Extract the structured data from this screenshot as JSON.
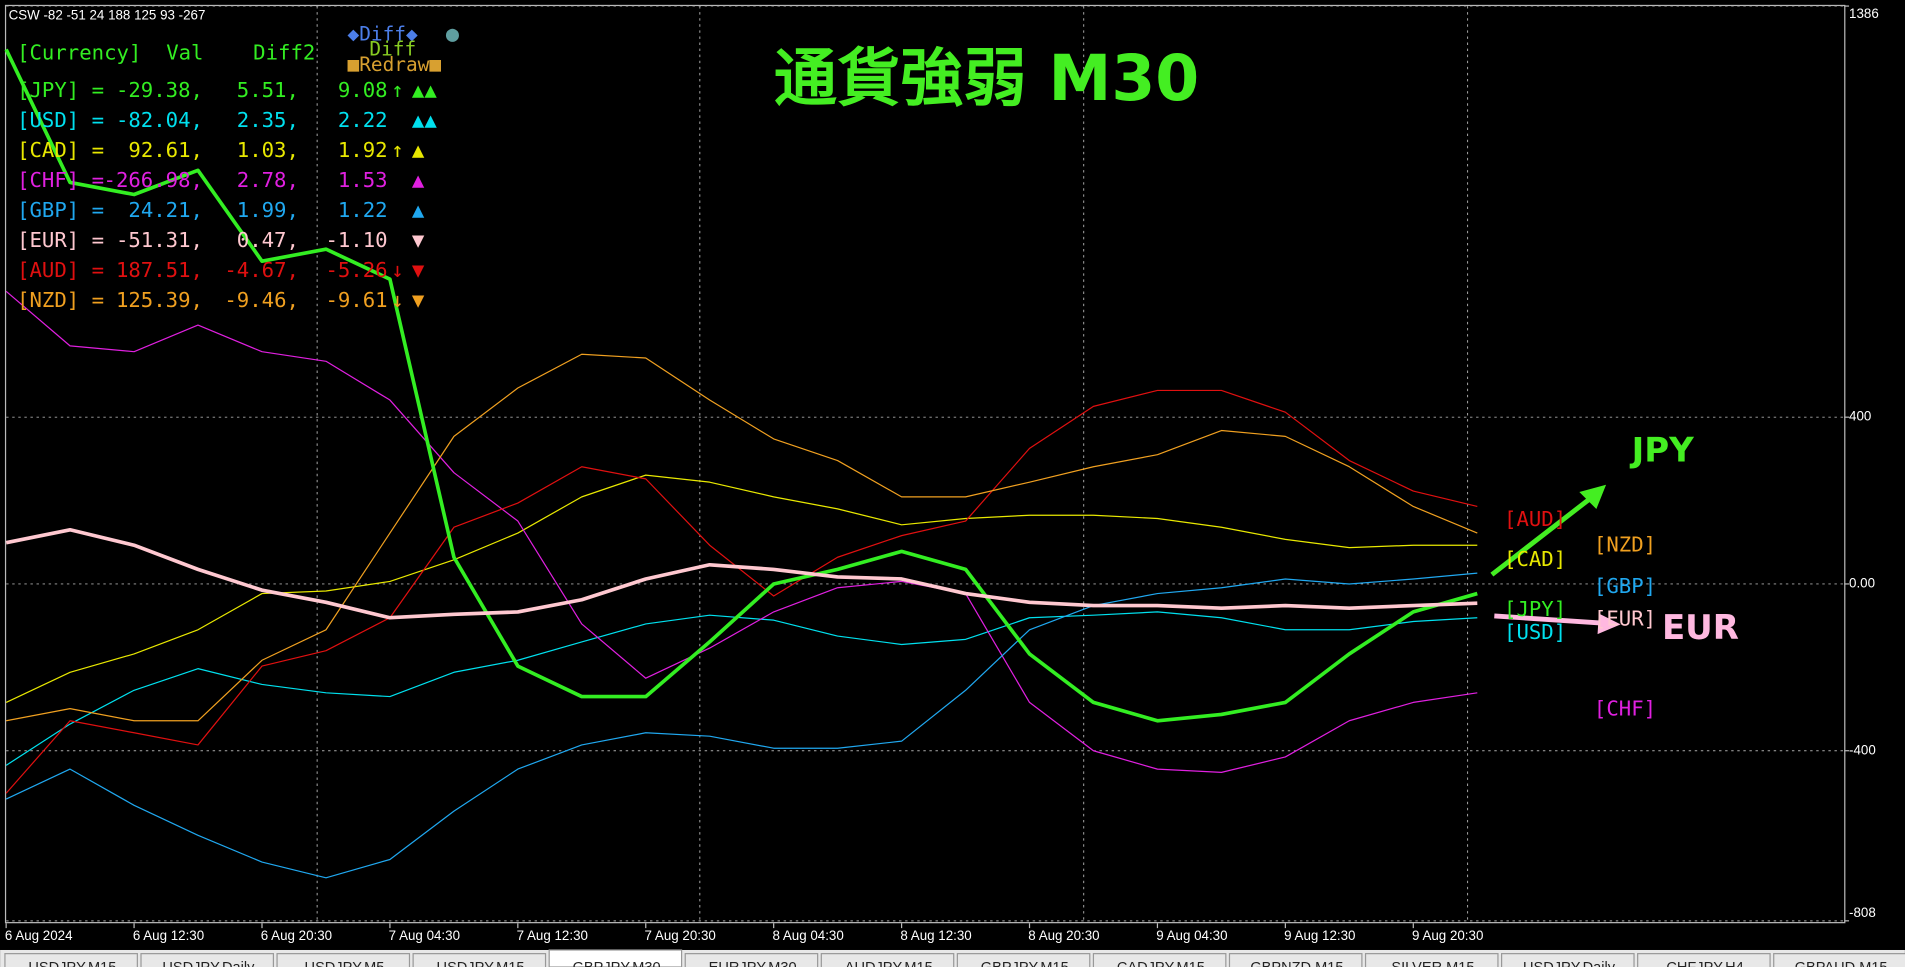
{
  "indicator": {
    "header": "CSW -82 -51 24 188 125 93 -267",
    "columns": "[Currency]  Val    Diff2",
    "buttons": [
      "◆Diff◆",
      "●",
      "Diff",
      "■Redraw■"
    ],
    "rows": [
      {
        "label": "[JPY] =",
        "value": "-29.38,",
        "diff": "5.51,",
        "diff2": "9.08",
        "arrow": "↑",
        "marks": "▲▲"
      },
      {
        "label": "[USD] =",
        "value": "-82.04,",
        "diff": "2.35,",
        "diff2": "2.22",
        "marks": "▲▲"
      },
      {
        "label": "[CAD] =",
        "value": "92.61,",
        "diff": "1.03,",
        "diff2": "1.92",
        "arrow": "↑",
        "marks": "▲"
      },
      {
        "label": "[CHF] =",
        "value": "-266.98,",
        "diff": "2.78,",
        "diff2": "1.53",
        "marks": "▲"
      },
      {
        "label": "[GBP] =",
        "value": "24.21,",
        "diff": "1.99,",
        "diff2": "1.22",
        "marks": "▲"
      },
      {
        "label": "[EUR] =",
        "value": "-51.31,",
        "diff": "0.47,",
        "diff2": "-1.10",
        "marks": "▼"
      },
      {
        "label": "[AUD] =",
        "value": "187.51,",
        "diff": "-4.67,",
        "diff2": "-5.26",
        "arrow": "↓",
        "marks": "▼"
      },
      {
        "label": "[NZD] =",
        "value": "125.39,",
        "diff": "-9.46,",
        "diff2": "-9.61",
        "arrow": "↓",
        "marks": "▼"
      }
    ]
  },
  "chart_data": {
    "type": "line",
    "title": "通貨強弱 M30",
    "annotations": [
      "JPY",
      "EUR"
    ],
    "categories": [
      "6 Aug 2024",
      null,
      "6 Aug 12:30",
      null,
      "6 Aug 20:30",
      null,
      "7 Aug 04:30",
      null,
      "7 Aug 12:30",
      null,
      "7 Aug 20:30",
      null,
      "8 Aug 04:30",
      null,
      "8 Aug 12:30",
      null,
      "8 Aug 20:30",
      null,
      "9 Aug 04:30",
      null,
      "9 Aug 12:30",
      null,
      "9 Aug 20:30",
      null
    ],
    "ylim": [
      -808,
      1386
    ],
    "yticks": [
      -808,
      -400,
      {
        "value": 0,
        "label": "0.00"
      },
      400,
      1386
    ],
    "grid": true,
    "series": [
      {
        "name": "[JPY]",
        "color": "#33ee22",
        "line_width": 3,
        "values": [
          1282,
          963,
          934,
          992,
          774,
          803,
          731,
          64,
          -197,
          -270,
          -270,
          -139,
          0,
          35,
          78,
          35,
          -168,
          -284,
          -328,
          -313,
          -284,
          -168,
          -67,
          -23
        ]
      },
      {
        "name": "[USD]",
        "color": "#00e0ee",
        "line_width": 1,
        "values": [
          -435,
          -336,
          -255,
          -203,
          -241,
          -261,
          -270,
          -212,
          -183,
          -139,
          -96,
          -75,
          -87,
          -125,
          -145,
          -133,
          -81,
          -75,
          -67,
          -81,
          -110,
          -110,
          -90,
          -81
        ]
      },
      {
        "name": "[CAD]",
        "color": "#e8e800",
        "line_width": 1,
        "values": [
          -284,
          -212,
          -168,
          -110,
          -23,
          -17,
          6,
          58,
          122,
          209,
          261,
          244,
          209,
          180,
          142,
          157,
          165,
          165,
          157,
          136,
          107,
          87,
          93,
          93
        ]
      },
      {
        "name": "[CHF]",
        "color": "#e020e0",
        "line_width": 1,
        "values": [
          702,
          571,
          557,
          621,
          557,
          534,
          441,
          267,
          151,
          -96,
          -226,
          -154,
          -67,
          -9,
          6,
          -23,
          -284,
          -400,
          -444,
          -452,
          -415,
          -328,
          -284,
          -261
        ]
      },
      {
        "name": "[GBP]",
        "color": "#20a8f0",
        "line_width": 1,
        "values": [
          -516,
          -444,
          -531,
          -603,
          -667,
          -705,
          -661,
          -545,
          -444,
          -386,
          -357,
          -365,
          -394,
          -394,
          -377,
          -255,
          -110,
          -52,
          -23,
          -9,
          12,
          0,
          12,
          26
        ]
      },
      {
        "name": "[EUR]",
        "color": "#ffc8d0",
        "line_width": 3,
        "values": [
          99,
          130,
          93,
          35,
          -15,
          -44,
          -81,
          -73,
          -67,
          -38,
          12,
          46,
          35,
          17,
          12,
          -23,
          -44,
          -52,
          -52,
          -58,
          -52,
          -58,
          -52,
          -46
        ]
      },
      {
        "name": "[AUD]",
        "color": "#e01010",
        "line_width": 1,
        "values": [
          -502,
          -328,
          -357,
          -386,
          -197,
          -160,
          -81,
          136,
          194,
          281,
          252,
          93,
          -29,
          64,
          116,
          151,
          325,
          426,
          464,
          464,
          412,
          296,
          223,
          186
        ]
      },
      {
        "name": "[NZD]",
        "color": "#f0a020",
        "line_width": 1,
        "values": [
          -328,
          -299,
          -328,
          -328,
          -183,
          -110,
          122,
          354,
          470,
          551,
          542,
          441,
          348,
          296,
          209,
          209,
          244,
          281,
          310,
          368,
          354,
          281,
          186,
          122
        ]
      }
    ]
  },
  "tabs": [
    "USDJPY,M15",
    "USDJPY,Daily",
    "USDJPY,M5",
    "USDJPY,M15",
    "GBPJPY,M30",
    "EURJPY,M30",
    "AUDJPY,M15",
    "GBPJPY,M15",
    "CADJPY,M15",
    "GBPNZD,M15",
    "SILVER,M15",
    "USDJPY,Daily",
    "CHFJPY,H4",
    "GBPAUD,M15"
  ]
}
